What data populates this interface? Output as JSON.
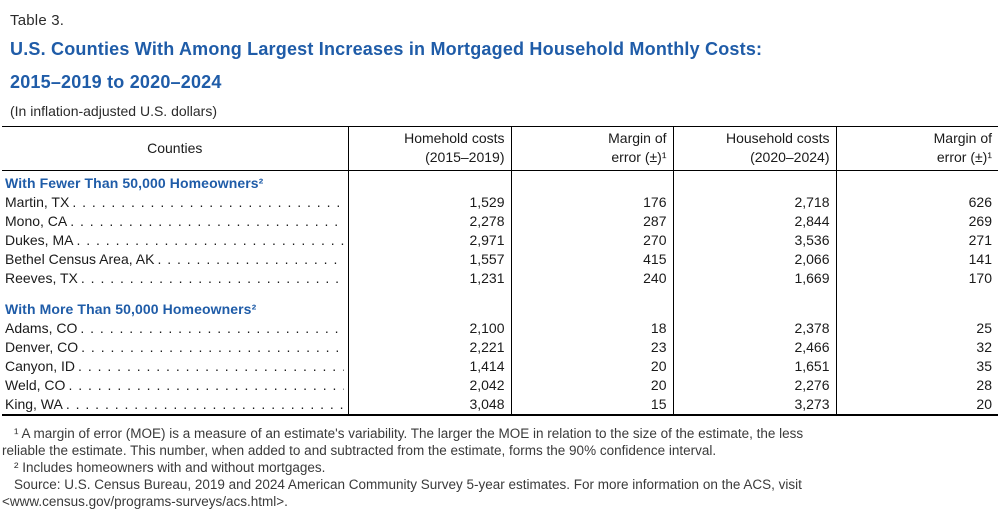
{
  "heading": {
    "table_label": "Table 3.",
    "title_line1": "U.S. Counties With Among Largest Increases in Mortgaged Household Monthly Costs:",
    "title_line2": "2015–2019 to 2020–2024",
    "subtitle": "(In inflation-adjusted U.S. dollars)"
  },
  "colors": {
    "accent_blue": "#1f5ca8",
    "rule_black": "#000000"
  },
  "table": {
    "columns": {
      "counties": "Counties",
      "costs_2015_2019": "Homehold costs\n(2015–2019)",
      "moe_1": "Margin of\nerror (±)¹",
      "costs_2020_2024": "Household costs\n(2020–2024)",
      "moe_2": "Margin of\nerror (±)¹"
    },
    "sections": [
      {
        "header": "With Fewer Than 50,000 Homeowners²",
        "rows": [
          {
            "county": "Martin, TX",
            "costs_2015_2019": "1,529",
            "moe_2015_2019": "176",
            "costs_2020_2024": "2,718",
            "moe_2020_2024": "626"
          },
          {
            "county": "Mono, CA",
            "costs_2015_2019": "2,278",
            "moe_2015_2019": "287",
            "costs_2020_2024": "2,844",
            "moe_2020_2024": "269"
          },
          {
            "county": "Dukes, MA",
            "costs_2015_2019": "2,971",
            "moe_2015_2019": "270",
            "costs_2020_2024": "3,536",
            "moe_2020_2024": "271"
          },
          {
            "county": "Bethel Census Area, AK",
            "costs_2015_2019": "1,557",
            "moe_2015_2019": "415",
            "costs_2020_2024": "2,066",
            "moe_2020_2024": "141"
          },
          {
            "county": "Reeves, TX",
            "costs_2015_2019": "1,231",
            "moe_2015_2019": "240",
            "costs_2020_2024": "1,669",
            "moe_2020_2024": "170"
          }
        ]
      },
      {
        "header": "With More Than 50,000 Homeowners²",
        "rows": [
          {
            "county": "Adams, CO",
            "costs_2015_2019": "2,100",
            "moe_2015_2019": "18",
            "costs_2020_2024": "2,378",
            "moe_2020_2024": "25"
          },
          {
            "county": "Denver, CO",
            "costs_2015_2019": "2,221",
            "moe_2015_2019": "23",
            "costs_2020_2024": "2,466",
            "moe_2020_2024": "32"
          },
          {
            "county": "Canyon, ID",
            "costs_2015_2019": "1,414",
            "moe_2015_2019": "20",
            "costs_2020_2024": "1,651",
            "moe_2020_2024": "35"
          },
          {
            "county": "Weld, CO",
            "costs_2015_2019": "2,042",
            "moe_2015_2019": "20",
            "costs_2020_2024": "2,276",
            "moe_2020_2024": "28"
          },
          {
            "county": "King, WA",
            "costs_2015_2019": "3,048",
            "moe_2015_2019": "15",
            "costs_2020_2024": "3,273",
            "moe_2020_2024": "20"
          }
        ]
      }
    ]
  },
  "notes": {
    "footnote1_line1": "¹ A margin of error (MOE) is a measure of an estimate's variability. The larger the MOE in relation to the size of the estimate, the less",
    "footnote1_line2": "reliable the estimate. This number, when added to and subtracted from the estimate, forms the 90% confidence interval.",
    "footnote2": "² Includes homeowners with and without mortgages.",
    "source_line1": "Source: U.S. Census Bureau, 2019 and 2024 American Community Survey 5-year estimates. For more information on the ACS, visit",
    "source_line2": "<www.census.gov/programs-surveys/acs.html>."
  }
}
